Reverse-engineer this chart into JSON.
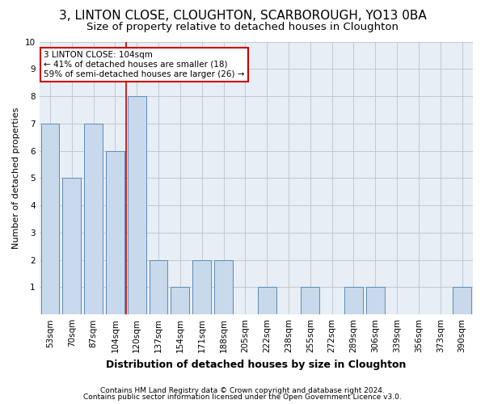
{
  "title": "3, LINTON CLOSE, CLOUGHTON, SCARBOROUGH, YO13 0BA",
  "subtitle": "Size of property relative to detached houses in Cloughton",
  "xlabel": "Distribution of detached houses by size in Cloughton",
  "ylabel": "Number of detached properties",
  "categories": [
    "53sqm",
    "70sqm",
    "87sqm",
    "104sqm",
    "120sqm",
    "137sqm",
    "154sqm",
    "171sqm",
    "188sqm",
    "205sqm",
    "222sqm",
    "238sqm",
    "255sqm",
    "272sqm",
    "289sqm",
    "306sqm",
    "339sqm",
    "356sqm",
    "373sqm",
    "390sqm"
  ],
  "values": [
    7,
    5,
    7,
    6,
    8,
    2,
    1,
    2,
    2,
    0,
    1,
    0,
    1,
    0,
    1,
    1,
    0,
    0,
    0,
    1
  ],
  "bar_color": "#c8d9eb",
  "bar_edge_color": "#5b8db8",
  "highlight_index": 3,
  "highlight_line_color": "#cc0000",
  "ylim": [
    0,
    10
  ],
  "yticks": [
    0,
    1,
    2,
    3,
    4,
    5,
    6,
    7,
    8,
    9,
    10
  ],
  "annotation_box_text": "3 LINTON CLOSE: 104sqm\n← 41% of detached houses are smaller (18)\n59% of semi-detached houses are larger (26) →",
  "annotation_box_color": "#cc0000",
  "footnote1": "Contains HM Land Registry data © Crown copyright and database right 2024.",
  "footnote2": "Contains public sector information licensed under the Open Government Licence v3.0.",
  "background_color": "#ffffff",
  "plot_bg_color": "#e8eef5",
  "grid_color": "#c0c8d0",
  "title_fontsize": 11,
  "subtitle_fontsize": 9.5,
  "xlabel_fontsize": 9,
  "ylabel_fontsize": 8,
  "tick_fontsize": 7.5,
  "annot_fontsize": 7.5,
  "footnote_fontsize": 6.5
}
